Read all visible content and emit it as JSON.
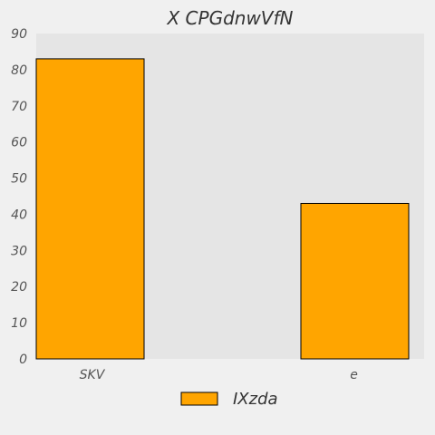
{
  "chart_data": {
    "type": "bar",
    "title": "X CPGdnwVfN",
    "xlabel": "",
    "ylabel": "",
    "categories": [
      "SKV",
      "e"
    ],
    "series": [
      {
        "name": "IXzda",
        "values": [
          83,
          43
        ],
        "color": "#ffa500"
      }
    ],
    "ylim": [
      0,
      90
    ],
    "yticks": [
      0,
      10,
      20,
      30,
      40,
      50,
      60,
      70,
      80,
      90
    ],
    "grid": false,
    "legend_position": "bottom-center",
    "plot_background": "#e5e5e5",
    "page_background": "#f0f0f0",
    "bar_edge_color": "#000000"
  }
}
